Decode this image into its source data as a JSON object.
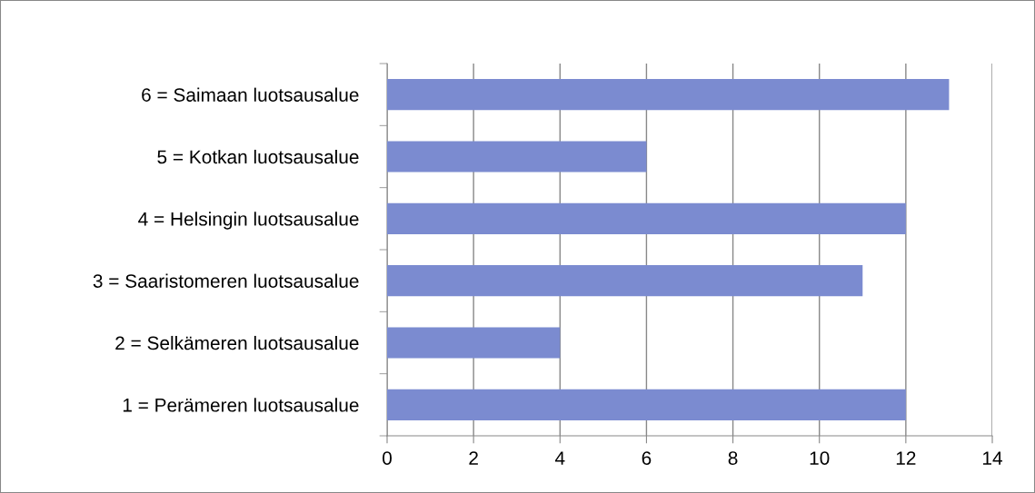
{
  "chart_data": {
    "type": "bar",
    "orientation": "horizontal",
    "categories": [
      "6 = Saimaan luotsausalue",
      "5 = Kotkan luotsausalue",
      "4 = Helsingin luotsausalue",
      "3 = Saaristomeren luotsausalue",
      "2 = Selkämeren luotsausalue",
      "1 = Perämeren luotsausalue"
    ],
    "values": [
      13,
      6,
      12,
      11,
      4,
      12
    ],
    "color": "#7b8bd0",
    "xlim": [
      0,
      14
    ],
    "xticks": [
      0,
      2,
      4,
      6,
      8,
      10,
      12,
      14
    ],
    "grid": "x",
    "legend": false
  }
}
